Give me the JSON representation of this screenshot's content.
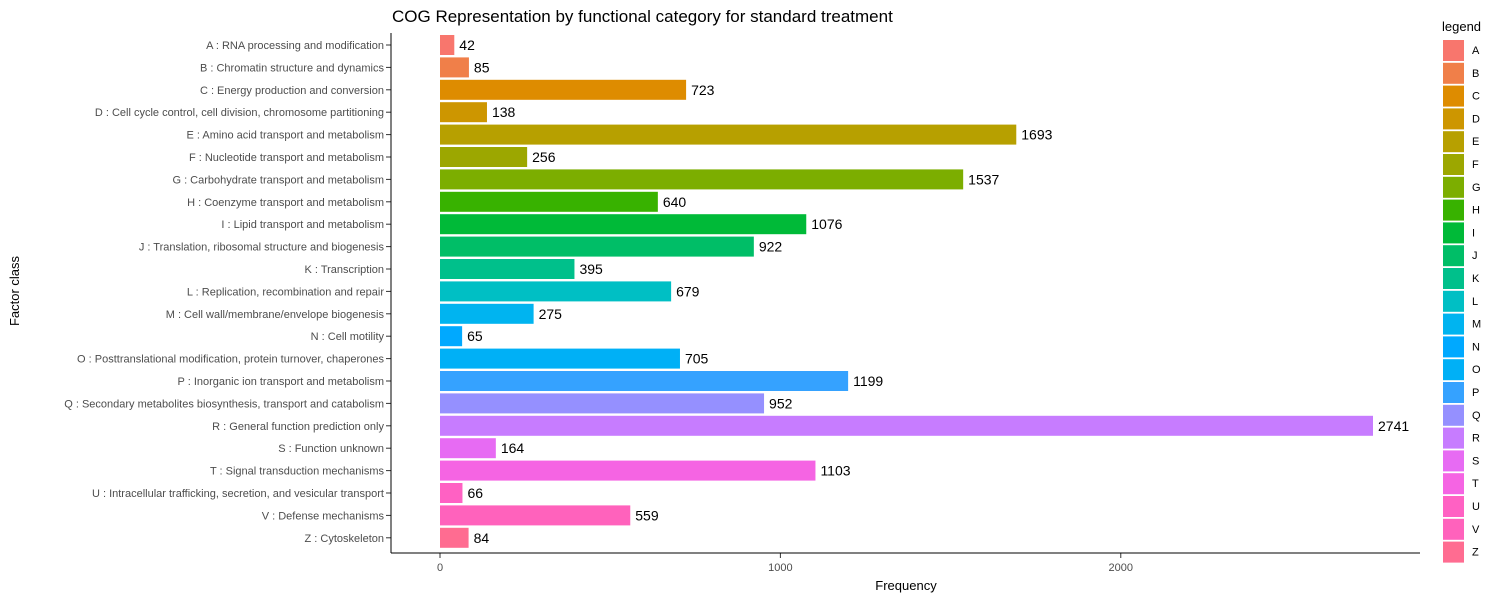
{
  "chart_data": {
    "type": "bar",
    "orientation": "horizontal",
    "title": "COG Representation by functional category for standard treatment",
    "xlabel": "Frequency",
    "ylabel": "Factor class",
    "xlim": [
      0,
      2860
    ],
    "xticks": [
      0,
      1000,
      2000
    ],
    "grid": false,
    "legend": {
      "title": "legend",
      "position": "right"
    },
    "categories": [
      "A : RNA processing and modification",
      "B : Chromatin structure and dynamics",
      "C : Energy production and conversion",
      "D : Cell cycle control, cell division, chromosome partitioning",
      "E : Amino acid transport and metabolism",
      "F : Nucleotide transport and metabolism",
      "G : Carbohydrate transport and metabolism",
      "H : Coenzyme transport and metabolism",
      "I : Lipid transport and metabolism",
      "J : Translation, ribosomal structure and biogenesis",
      "K : Transcription",
      "L : Replication, recombination and repair",
      "M : Cell wall/membrane/envelope biogenesis",
      "N : Cell motility",
      "O : Posttranslational modification, protein turnover, chaperones",
      "P : Inorganic ion transport and metabolism",
      "Q : Secondary metabolites biosynthesis, transport and catabolism",
      "R : General function prediction only",
      "S : Function unknown",
      "T : Signal transduction mechanisms",
      "U : Intracellular trafficking, secretion, and vesicular transport",
      "V : Defense mechanisms",
      "Z : Cytoskeleton"
    ],
    "codes": [
      "A",
      "B",
      "C",
      "D",
      "E",
      "F",
      "G",
      "H",
      "I",
      "J",
      "K",
      "L",
      "M",
      "N",
      "O",
      "P",
      "Q",
      "R",
      "S",
      "T",
      "U",
      "V",
      "Z"
    ],
    "values": [
      42,
      85,
      723,
      138,
      1693,
      256,
      1537,
      640,
      1076,
      922,
      395,
      679,
      275,
      65,
      705,
      1199,
      952,
      2741,
      164,
      1103,
      66,
      559,
      84
    ],
    "colors": [
      "#F8766D",
      "#F07F49",
      "#DE8C00",
      "#CD9600",
      "#B7A000",
      "#9CA700",
      "#7CAE00",
      "#38B200",
      "#00BA38",
      "#00BE67",
      "#00C08B",
      "#00BFC4",
      "#00B4F0",
      "#00A9FF",
      "#00B0F6",
      "#35A2FF",
      "#9590FF",
      "#C77CFF",
      "#E76BF3",
      "#F564E3",
      "#FF61C3",
      "#FF62BC",
      "#FF6C91"
    ]
  }
}
